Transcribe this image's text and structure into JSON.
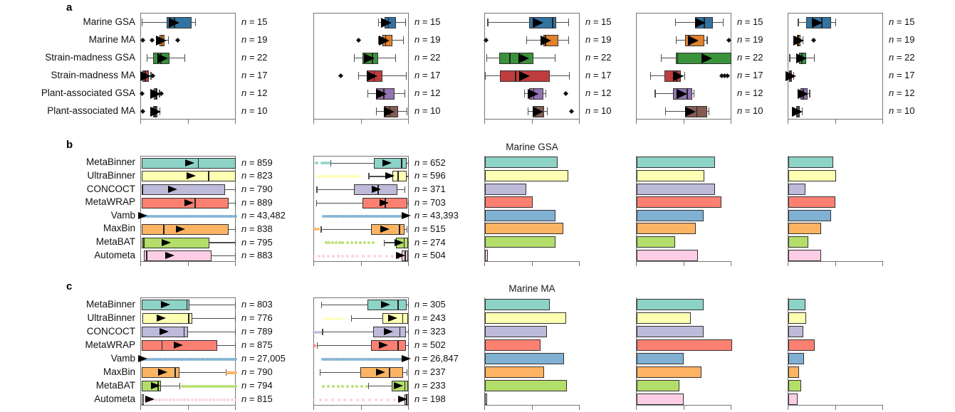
{
  "chart_data": [
    {
      "panel": "a",
      "type": "box",
      "orientation": "horizontal",
      "n_prefix": "n",
      "categories": [
        "Marine GSA",
        "Marine MA",
        "Strain-madness GSA",
        "Strain-madness MA",
        "Plant-associated GSA",
        "Plant-associated MA"
      ],
      "colors": [
        "#3274a1",
        "#e1812c",
        "#3a923a",
        "#c03d3e",
        "#9372b2",
        "#845b53"
      ],
      "xlim": [
        0,
        1
      ],
      "xticks": [
        0,
        0.5,
        1
      ],
      "plots": [
        {
          "kind": "box",
          "n": [
            "15",
            "19",
            "22",
            "17",
            "12",
            "10"
          ],
          "stats": [
            [
              0.005,
              0.27,
              0.35,
              0.53,
              0.565,
              0.34
            ],
            [
              0.165,
              0.195,
              0.22,
              0.25,
              0.28,
              0.21
            ],
            [
              0.06,
              0.13,
              0.21,
              0.3,
              0.455,
              0.22
            ],
            [
              0.005,
              0.015,
              0.045,
              0.08,
              0.1,
              0.04
            ],
            [
              0.125,
              0.135,
              0.155,
              0.175,
              0.19,
              0.15
            ],
            [
              0.115,
              0.13,
              0.15,
              0.175,
              0.195,
              0.145
            ]
          ],
          "fliers": [
            [],
            [
              0.02,
              0.115,
              0.385
            ],
            [],
            [
              0.12
            ],
            [
              0.012,
              0.21
            ],
            [
              0.015
            ]
          ]
        },
        {
          "kind": "box",
          "n": [
            "15",
            "19",
            "22",
            "17",
            "12",
            "10"
          ],
          "stats": [
            [
              0.67,
              0.74,
              0.78,
              0.86,
              0.955,
              0.75
            ],
            [
              0.67,
              0.72,
              0.75,
              0.82,
              0.93,
              0.73
            ],
            [
              0.42,
              0.51,
              0.61,
              0.67,
              0.85,
              0.57
            ],
            [
              0.46,
              0.555,
              0.63,
              0.72,
              0.96,
              0.6
            ],
            [
              0.56,
              0.65,
              0.73,
              0.845,
              0.945,
              0.7
            ],
            [
              0.65,
              0.73,
              0.795,
              0.88,
              0.97,
              0.78
            ]
          ],
          "fliers": [
            [],
            [
              0.47
            ],
            [],
            [
              0.28
            ],
            [],
            []
          ]
        },
        {
          "kind": "box",
          "n": [
            "15",
            "19",
            "22",
            "17",
            "12",
            "10"
          ],
          "stats": [
            [
              0.025,
              0.46,
              0.71,
              0.75,
              0.87,
              0.55
            ],
            [
              0.435,
              0.61,
              0.635,
              0.77,
              0.87,
              0.63
            ],
            [
              0.015,
              0.15,
              0.26,
              0.51,
              0.73,
              0.4
            ],
            [
              0.0,
              0.16,
              0.32,
              0.68,
              0.88,
              0.41
            ],
            [
              0.41,
              0.46,
              0.51,
              0.61,
              0.635,
              0.5
            ],
            [
              0.448,
              0.5,
              0.535,
              0.62,
              0.65,
              0.55
            ]
          ],
          "fliers": [
            [],
            [
              0.01
            ],
            [],
            [],
            [
              0.845
            ],
            [
              0.908
            ]
          ]
        },
        {
          "kind": "box",
          "n": [
            "15",
            "19",
            "22",
            "17",
            "12",
            "10"
          ],
          "stats": [
            [
              0.4,
              0.61,
              0.71,
              0.8,
              0.9,
              0.66
            ],
            [
              0.41,
              0.51,
              0.555,
              0.71,
              0.735,
              0.59
            ],
            [
              0.25,
              0.41,
              0.43,
              0.99,
              0.99,
              0.73
            ],
            [
              0.14,
              0.29,
              0.42,
              0.46,
              0.5,
              0.43
            ],
            [
              0.19,
              0.38,
              0.53,
              0.58,
              0.595,
              0.47
            ],
            [
              0.3,
              0.51,
              0.63,
              0.74,
              0.755,
              0.56
            ]
          ],
          "fliers": [
            [],
            [
              0.995
            ],
            [],
            [
              0.895,
              0.925,
              0.955
            ],
            [],
            []
          ]
        },
        {
          "kind": "box",
          "n": [
            "15",
            "19",
            "22",
            "17",
            "12",
            "10"
          ],
          "stats": [
            [
              0.1,
              0.19,
              0.35,
              0.45,
              0.49,
              0.3
            ],
            [
              0.07,
              0.09,
              0.105,
              0.125,
              0.15,
              0.1
            ],
            [
              0.01,
              0.11,
              0.14,
              0.19,
              0.27,
              0.13
            ],
            [
              0.005,
              0.01,
              0.02,
              0.035,
              0.05,
              0.02
            ],
            [
              0.11,
              0.13,
              0.155,
              0.2,
              0.22,
              0.15
            ],
            [
              0.06,
              0.08,
              0.1,
              0.12,
              0.14,
              0.09
            ]
          ],
          "fliers": [
            [],
            [
              0.265
            ],
            [],
            [],
            [],
            []
          ]
        }
      ]
    },
    {
      "panel": "b",
      "title": "Marine GSA",
      "type": "box+bar",
      "orientation": "horizontal",
      "n_prefix": "n",
      "categories": [
        "MetaBinner",
        "UltraBinner",
        "CONCOCT",
        "MetaWRAP",
        "Vamb",
        "MaxBin",
        "MetaBAT",
        "Autometa"
      ],
      "colors": [
        "#8dd3c7",
        "#ffffb3",
        "#bebada",
        "#fb8072",
        "#80b1d3",
        "#fdb462",
        "#b3de69",
        "#fccde5"
      ],
      "xlim": [
        0,
        1
      ],
      "xticks": [
        0,
        0.5,
        1
      ],
      "plots": [
        {
          "kind": "box",
          "n": [
            "859",
            "823",
            "790",
            "889",
            "43,482",
            "838",
            "795",
            "883"
          ],
          "stats": [
            [
              0.005,
              0.005,
              0.6,
              0.995,
              0.995,
              0.51
            ],
            [
              0.005,
              0.005,
              0.71,
              0.995,
              0.995,
              0.52
            ],
            [
              0.005,
              0.005,
              0.02,
              0.88,
              0.995,
              0.33
            ],
            [
              0.005,
              0.005,
              0.565,
              0.92,
              0.995,
              0.5
            ],
            [
              0,
              0,
              0,
              0,
              0,
              0.012
            ],
            [
              0.005,
              0.005,
              0.24,
              0.92,
              0.995,
              0.41
            ],
            [
              0.005,
              0.005,
              0.03,
              0.72,
              0.995,
              0.26
            ],
            [
              0.03,
              0.03,
              0.06,
              0.74,
              0.99,
              0.3
            ]
          ],
          "dots": [
            [],
            [],
            [],
            [],
            [
              [
                0.02,
                0.995,
                55
              ]
            ],
            [],
            [],
            []
          ]
        },
        {
          "kind": "box",
          "n": [
            "652",
            "596",
            "371",
            "703",
            "43,393",
            "515",
            "274",
            "504"
          ],
          "stats": [
            [
              0.17,
              0.63,
              0.92,
              0.97,
              0.985,
              0.76
            ],
            [
              0.57,
              0.82,
              0.88,
              0.97,
              0.985,
              0.79
            ],
            [
              0.025,
              0.42,
              0.67,
              0.875,
              0.95,
              0.65
            ],
            [
              0.02,
              0.51,
              0.745,
              0.98,
              0.99,
              0.73
            ],
            [
              0,
              0,
              0,
              0,
              0,
              0.958
            ],
            [
              0.07,
              0.6,
              0.895,
              0.95,
              0.97,
              0.74
            ],
            [
              0.73,
              0.86,
              0.945,
              0.985,
              0.99,
              0.89
            ],
            [
              0.88,
              0.92,
              0.955,
              0.985,
              0.99,
              0.9
            ]
          ],
          "dots": [
            [
              [
                0.02,
                0.03,
                2
              ],
              [
                0.085,
                0.16,
                5
              ]
            ],
            [
              [
                0.04,
                0.48,
                20
              ]
            ],
            [],
            [],
            [
              [
                0.1,
                0.96,
                45
              ]
            ],
            [
              [
                0.005,
                0.045,
                3
              ]
            ],
            [
              [
                0.125,
                0.3,
                6
              ],
              [
                0.35,
                0.62,
                7
              ]
            ],
            [
              [
                0.0,
                0.4,
                9
              ],
              [
                0.45,
                0.82,
                7
              ]
            ]
          ]
        },
        {
          "kind": "bar",
          "values": [
            0.76,
            0.87,
            0.43,
            0.5,
            0.74,
            0.82,
            0.74,
            0.03
          ]
        },
        {
          "kind": "bar",
          "values": [
            0.82,
            0.71,
            0.82,
            0.89,
            0.7,
            0.62,
            0.4,
            0.64
          ]
        },
        {
          "kind": "bar",
          "values": [
            0.47,
            0.5,
            0.18,
            0.49,
            0.45,
            0.34,
            0.21,
            0.34
          ]
        }
      ]
    },
    {
      "panel": "c",
      "title": "Marine MA",
      "type": "box+bar",
      "orientation": "horizontal",
      "n_prefix": "n",
      "categories": [
        "MetaBinner",
        "UltraBinner",
        "CONCOCT",
        "MetaWRAP",
        "Vamb",
        "MaxBin",
        "MetaBAT",
        "Autometa"
      ],
      "colors": [
        "#8dd3c7",
        "#ffffb3",
        "#bebada",
        "#fb8072",
        "#80b1d3",
        "#fdb462",
        "#b3de69",
        "#fccde5"
      ],
      "xlim": [
        0,
        1
      ],
      "xticks": [
        0,
        0.5,
        1
      ],
      "plots": [
        {
          "kind": "box",
          "n": [
            "803",
            "776",
            "789",
            "875",
            "27,005",
            "790",
            "794",
            "815"
          ],
          "stats": [
            [
              0.01,
              0.01,
              0.48,
              0.51,
              0.99,
              0.25
            ],
            [
              0.015,
              0.015,
              0.5,
              0.54,
              0.99,
              0.21
            ],
            [
              0.01,
              0.01,
              0.45,
              0.49,
              0.99,
              0.235
            ],
            [
              0.01,
              0.01,
              0.22,
              0.8,
              0.99,
              0.385
            ],
            [
              0,
              0,
              0,
              0,
              0,
              0.015
            ],
            [
              0.01,
              0.01,
              0.36,
              0.4,
              0.885,
              0.22
            ],
            [
              0.01,
              0.01,
              0.18,
              0.21,
              0.4,
              0.148
            ],
            [
              0.01,
              0.01,
              0.015,
              0.025,
              0.03,
              0.085
            ]
          ],
          "dots": [
            [],
            [],
            [],
            [],
            [
              [
                0.02,
                0.99,
                55
              ]
            ],
            [
              [
                0.9,
                0.99,
                9
              ]
            ],
            [
              [
                0.43,
                0.99,
                28
              ]
            ],
            [
              [
                0.04,
                0.99,
                26
              ]
            ]
          ]
        },
        {
          "kind": "box",
          "n": [
            "305",
            "243",
            "323",
            "502",
            "26,847",
            "237",
            "233",
            "198"
          ],
          "stats": [
            [
              0.075,
              0.56,
              0.88,
              0.97,
              0.985,
              0.745
            ],
            [
              0.385,
              0.72,
              0.93,
              0.985,
              0.99,
              0.82
            ],
            [
              0.085,
              0.62,
              0.9,
              0.96,
              0.985,
              0.775
            ],
            [
              0.03,
              0.6,
              0.88,
              0.96,
              0.985,
              0.72
            ],
            [
              0,
              0,
              0,
              0,
              0,
              0.965
            ],
            [
              0.06,
              0.485,
              0.79,
              0.935,
              0.97,
              0.69
            ],
            [
              0.565,
              0.81,
              0.95,
              0.985,
              0.99,
              0.88
            ],
            [
              0.945,
              0.945,
              0.97,
              0.995,
              0.995,
              0.925
            ]
          ],
          "dots": [
            [],
            [
              [
                0.11,
                0.29,
                7
              ]
            ],
            [
              [
                0.0,
                0.07,
                4
              ]
            ],
            [
              [
                0.01,
                0.02,
                1
              ]
            ],
            [
              [
                0.09,
                0.96,
                45
              ]
            ],
            [],
            [
              [
                0.1,
                0.55,
                10
              ]
            ],
            [
              [
                0.0,
                0.84,
                14
              ]
            ]
          ]
        },
        {
          "kind": "bar",
          "values": [
            0.68,
            0.85,
            0.65,
            0.58,
            0.83,
            0.62,
            0.86,
            0.02
          ]
        },
        {
          "kind": "bar",
          "values": [
            0.7,
            0.57,
            0.7,
            1.0,
            0.49,
            0.68,
            0.445,
            0.49
          ]
        },
        {
          "kind": "bar",
          "values": [
            0.18,
            0.19,
            0.157,
            0.276,
            0.164,
            0.112,
            0.137,
            0.1
          ]
        }
      ]
    }
  ]
}
